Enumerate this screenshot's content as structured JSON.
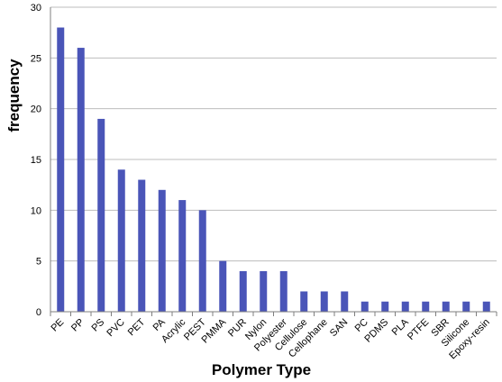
{
  "chart_data": {
    "type": "bar",
    "title": "",
    "xlabel": "Polymer Type",
    "ylabel": "frequency",
    "ylim": [
      0,
      30
    ],
    "yticks": [
      0,
      5,
      10,
      15,
      20,
      25,
      30
    ],
    "grid": true,
    "legend": "none",
    "bar_color": "#4a55b8",
    "categories": [
      "PE",
      "PP",
      "PS",
      "PVC",
      "PET",
      "PA",
      "Acrylic",
      "PEST",
      "PMMA",
      "PUR",
      "Nylon",
      "Polyester",
      "Cellulose",
      "Cellophane",
      "SAN",
      "PC",
      "PDMS",
      "PLA",
      "PTFE",
      "SBR",
      "Silicone",
      "Epoxy-resin"
    ],
    "values": [
      28,
      26,
      19,
      14,
      13,
      12,
      11,
      10,
      5,
      4,
      4,
      4,
      2,
      2,
      2,
      1,
      1,
      1,
      1,
      1,
      1,
      1
    ]
  }
}
